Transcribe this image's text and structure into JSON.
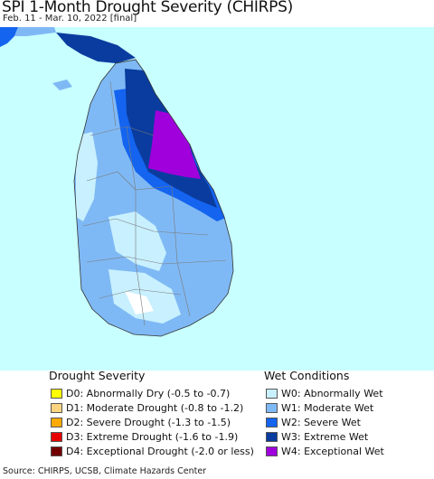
{
  "title": "SPI 1-Month Drought Severity (CHIRPS)",
  "subtitle": "Feb. 11 - Mar. 10, 2022 [final]",
  "source": "Source: CHIRPS, UCSB, Climate Hazards Center",
  "colors": {
    "ocean": "#c8ffff",
    "no_change": "#ffffff",
    "D0": "#ffff00",
    "D1": "#fcd37f",
    "D2": "#ffaa00",
    "D3": "#e60000",
    "D4": "#730000",
    "W0": "#c8f0ff",
    "W1": "#7fb9f5",
    "W2": "#1464f0",
    "W3": "#0a3c9f",
    "W4": "#a000dc"
  },
  "legend": {
    "drought_title": "Drought Severity",
    "wet_title": "Wet Conditions",
    "drought": [
      {
        "code": "D0",
        "label": "D0: Abnormally Dry (-0.5 to -0.7)"
      },
      {
        "code": "D1",
        "label": "D1: Moderate Drought (-0.8 to -1.2)"
      },
      {
        "code": "D2",
        "label": "D2: Severe Drought (-1.3 to -1.5)"
      },
      {
        "code": "D3",
        "label": "D3: Extreme Drought (-1.6 to -1.9)"
      },
      {
        "code": "D4",
        "label": "D4: Exceptional Drought (-2.0 or less)"
      }
    ],
    "wet": [
      {
        "code": "W0",
        "label": "W0: Abnormally Wet"
      },
      {
        "code": "W1",
        "label": "W1: Moderate Wet"
      },
      {
        "code": "W2",
        "label": "W2: Severe Wet"
      },
      {
        "code": "W3",
        "label": "W3: Extreme Wet"
      },
      {
        "code": "W4",
        "label": "W4: Exceptional Wet"
      }
    ]
  }
}
